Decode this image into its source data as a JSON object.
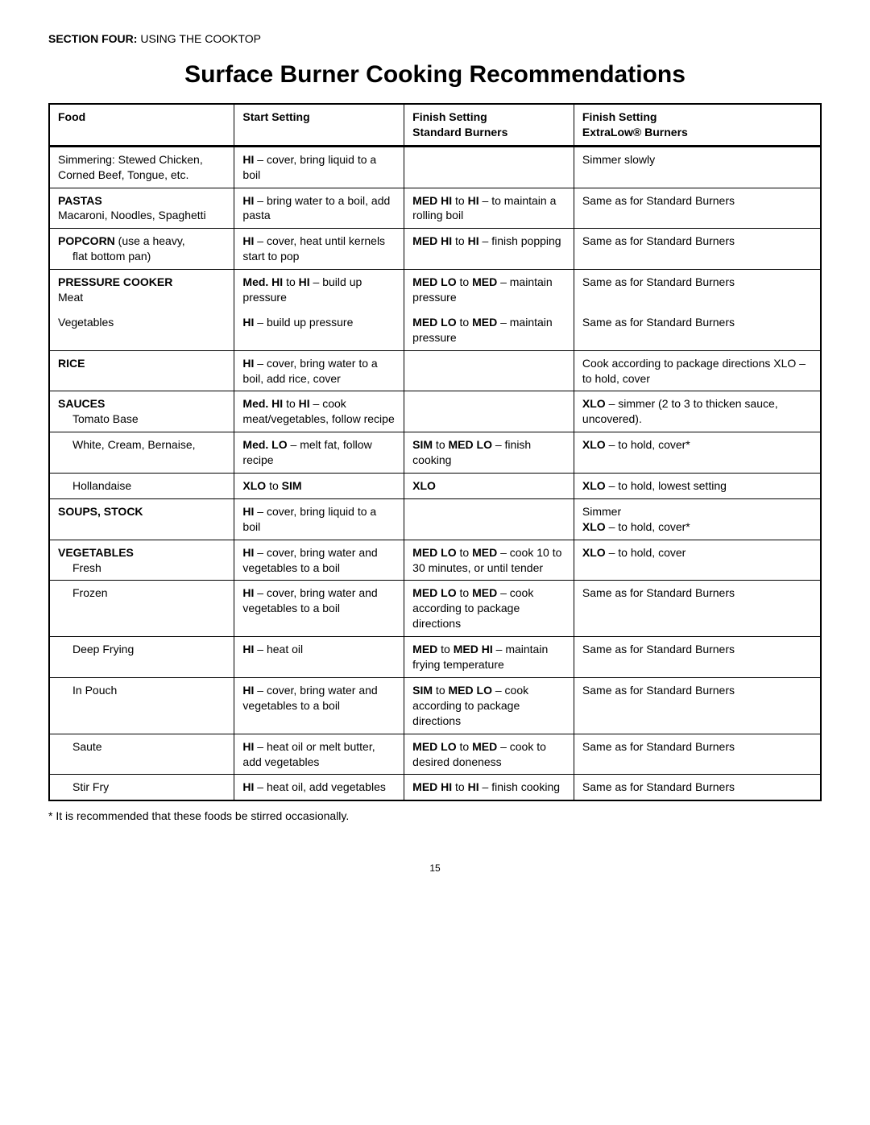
{
  "section_label_bold": "SECTION FOUR:",
  "section_label_rest": " USING THE COOKTOP",
  "title": "Surface Burner Cooking Recommendations",
  "columns": {
    "c1": "Food",
    "c2": "Start Setting",
    "c3a": "Finish Setting",
    "c3b": "Standard Burners",
    "c4a": "Finish Setting",
    "c4b": "ExtraLow® Burners"
  },
  "rows": [
    {
      "food_html": "Simmering: Stewed Chicken, Corned Beef, Tongue, etc.",
      "start_html": "<b>HI</b>  – cover, bring liquid to a boil",
      "finish_std_html": "",
      "finish_xlo_html": "Simmer slowly",
      "sep": true
    },
    {
      "food_html": "<b>PASTAS</b><br>Macaroni, Noodles, Spaghetti",
      "start_html": "<b>HI</b>  – bring water to a boil, add pasta",
      "finish_std_html": "<b>MED HI</b> to <b>HI</b> – to maintain a rolling boil",
      "finish_xlo_html": "Same as for Standard Burners",
      "sep": true
    },
    {
      "food_html": "<b>POPCORN</b> (use a heavy,<span class='indent'>flat bottom pan)</span>",
      "start_html": "<b>HI</b> – cover, heat until kernels start to pop",
      "finish_std_html": "<b>MED HI</b> to <b>HI</b> – finish popping",
      "finish_xlo_html": "Same as for Standard Burners",
      "sep": true
    },
    {
      "food_html": "<b>PRESSURE COOKER</b><br>Meat",
      "start_html": "<b>Med. HI</b> to <b>HI</b> – build up pressure",
      "finish_std_html": "<b>MED LO</b> to <b>MED</b> – maintain pressure",
      "finish_xlo_html": "Same as for Standard Burners",
      "sep": false
    },
    {
      "food_html": "Vegetables",
      "start_html": "<b>HI</b>  – build up pressure",
      "finish_std_html": "<b>MED LO</b> to <b>MED</b> – maintain pressure",
      "finish_xlo_html": "Same as for Standard Burners",
      "sep": true
    },
    {
      "food_html": "<b>RICE</b>",
      "start_html": "<b>HI</b>  – cover, bring water to a boil, add rice, cover",
      "finish_std_html": "",
      "finish_xlo_html": "Cook according to package directions XLO – to hold, cover",
      "sep": true
    },
    {
      "food_html": "<b>SAUCES</b><br><span class='indent'>Tomato Base</span>",
      "start_html": "<b>Med. HI</b> to <b>HI</b> – cook meat/vegetables, follow recipe",
      "finish_std_html": "",
      "finish_xlo_html": "<b>XLO</b> – simmer (2 to 3 to thicken sauce, uncovered).",
      "sep": true
    },
    {
      "food_html": "<span class='indent'>White, Cream, Bernaise,</span>",
      "start_html": "<b>Med. LO</b> – melt fat, follow recipe",
      "finish_std_html": "<b>SIM</b> to <b>MED LO</b> – finish cooking",
      "finish_xlo_html": "<b>XLO</b> – to hold, cover*",
      "sep": true
    },
    {
      "food_html": "<span class='indent'>Hollandaise</span>",
      "start_html": "<b>XLO</b> to <b>SIM</b>",
      "finish_std_html": "<b>XLO</b>",
      "finish_xlo_html": "<b>XLO</b> – to hold, lowest setting",
      "sep": true
    },
    {
      "food_html": "<b>SOUPS, STOCK</b>",
      "start_html": "<b>HI</b>  – cover, bring liquid to a boil",
      "finish_std_html": "",
      "finish_xlo_html": "Simmer<br><b>XLO</b> – to hold, cover*",
      "sep": true
    },
    {
      "food_html": "<b>VEGETABLES</b><br><span class='indent'>Fresh</span>",
      "start_html": "<b>HI</b>  – cover, bring water and vegetables to a boil",
      "finish_std_html": "<b>MED LO</b> to <b>MED</b> – cook 10 to 30 minutes, or until tender",
      "finish_xlo_html": "<b>XLO</b> – to hold, cover",
      "sep": true
    },
    {
      "food_html": "<span class='indent'>Frozen</span>",
      "start_html": "<b>HI</b> – cover, bring water and vegetables to a boil",
      "finish_std_html": "<b>MED LO</b> to <b>MED</b> – cook according to package directions",
      "finish_xlo_html": "Same as for Standard Burners",
      "sep": true
    },
    {
      "food_html": "<span class='indent'>Deep Frying</span>",
      "start_html": "<b>HI</b>  – heat oil",
      "finish_std_html": "<b>MED</b> to <b>MED HI</b> – maintain frying temperature",
      "finish_xlo_html": "Same as for Standard Burners",
      "sep": true
    },
    {
      "food_html": "<span class='indent'>In Pouch</span>",
      "start_html": "<b>HI</b> – cover, bring water and vegetables to a boil",
      "finish_std_html": "<b>SIM</b> to <b>MED LO</b> – cook according to package directions",
      "finish_xlo_html": "Same as for Standard Burners",
      "sep": true
    },
    {
      "food_html": "<span class='indent'>Saute</span>",
      "start_html": "<b>HI</b>  – heat oil or melt butter, add vegetables",
      "finish_std_html": "<b>MED LO</b> to <b>MED</b> – cook to desired doneness",
      "finish_xlo_html": "Same as for Standard Burners",
      "sep": true
    },
    {
      "food_html": "<span class='indent'>Stir Fry</span>",
      "start_html": "<b>HI</b> – heat oil, add vegetables",
      "finish_std_html": "<b>MED HI</b> to <b>HI</b> – finish cooking",
      "finish_xlo_html": "Same as for Standard Burners",
      "sep": false
    }
  ],
  "footnote": "* It is recommended that these foods be stirred occasionally.",
  "page_number": "15"
}
